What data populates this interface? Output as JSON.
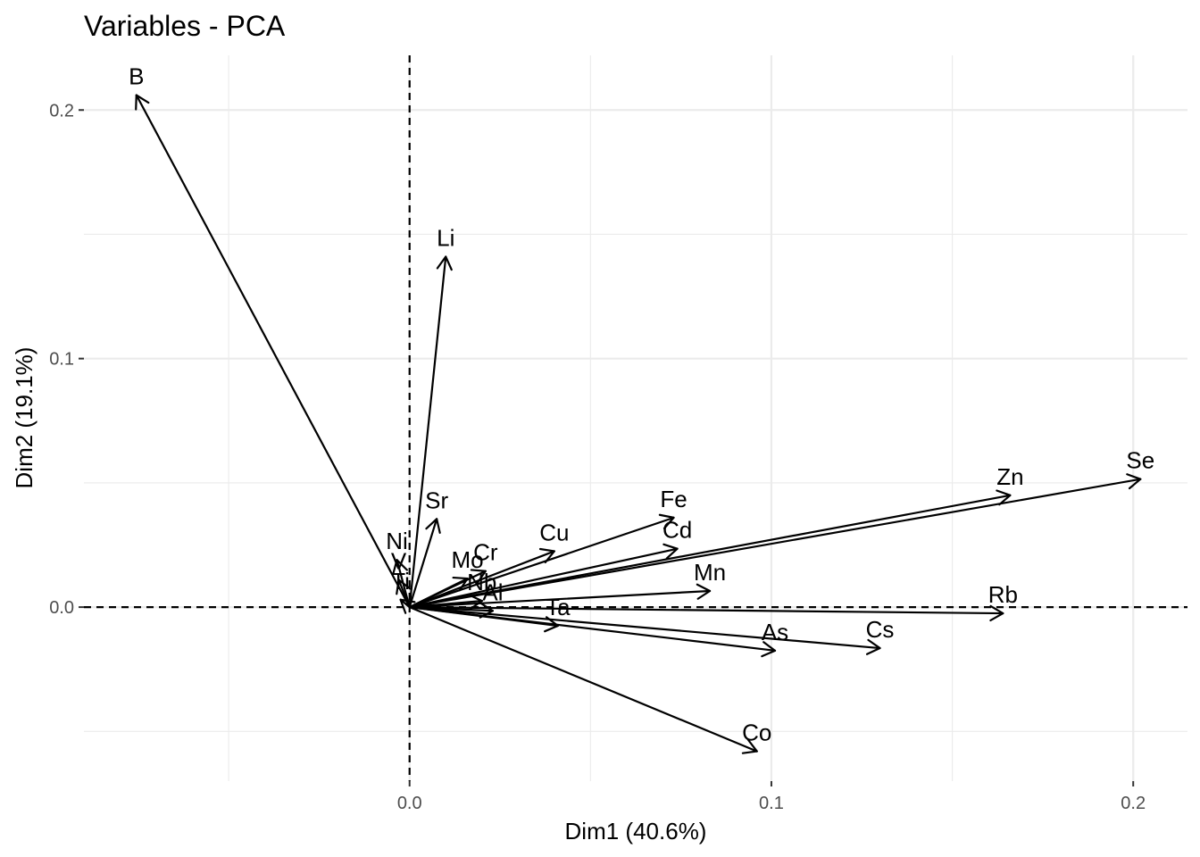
{
  "chart_data": {
    "type": "scatter",
    "title": "Variables - PCA",
    "xlabel": "Dim1 (40.6%)",
    "ylabel": "Dim2 (19.1%)",
    "xlim": [
      -0.09,
      0.215
    ],
    "ylim": [
      -0.07,
      0.222
    ],
    "x_ticks": [
      0.0,
      0.1,
      0.2
    ],
    "x_tick_labels": [
      "0.0",
      "0.1",
      "0.2"
    ],
    "y_ticks": [
      0.0,
      0.1,
      0.2
    ],
    "y_tick_labels": [
      "0.0",
      "0.1",
      "0.2"
    ],
    "grid": true,
    "reference_lines": {
      "x": 0,
      "y": 0,
      "style": "dashed"
    },
    "variables": [
      {
        "name": "B",
        "x": -0.0755,
        "y": 0.206
      },
      {
        "name": "Li",
        "x": 0.01,
        "y": 0.141
      },
      {
        "name": "Sr",
        "x": 0.0075,
        "y": 0.0355
      },
      {
        "name": "Ni",
        "x": -0.0035,
        "y": 0.019
      },
      {
        "name": "V",
        "x": -0.003,
        "y": 0.011
      },
      {
        "name": "Ti",
        "x": -0.0025,
        "y": 0.003
      },
      {
        "name": "Cr",
        "x": 0.021,
        "y": 0.0145
      },
      {
        "name": "Mo",
        "x": 0.016,
        "y": 0.0115
      },
      {
        "name": "Cu",
        "x": 0.04,
        "y": 0.0225
      },
      {
        "name": "Fe",
        "x": 0.073,
        "y": 0.036
      },
      {
        "name": "Cd",
        "x": 0.074,
        "y": 0.0235
      },
      {
        "name": "Zn",
        "x": 0.166,
        "y": 0.045
      },
      {
        "name": "Se",
        "x": 0.202,
        "y": 0.0515
      },
      {
        "name": "Mn",
        "x": 0.083,
        "y": 0.0065
      },
      {
        "name": "Nb",
        "x": 0.02,
        "y": 0.0025
      },
      {
        "name": "Al",
        "x": 0.023,
        "y": -0.0015
      },
      {
        "name": "Ta",
        "x": 0.041,
        "y": -0.0075
      },
      {
        "name": "Rb",
        "x": 0.164,
        "y": -0.0025
      },
      {
        "name": "Cs",
        "x": 0.13,
        "y": -0.0165
      },
      {
        "name": "As",
        "x": 0.101,
        "y": -0.0175
      },
      {
        "name": "Co",
        "x": 0.096,
        "y": -0.058
      }
    ]
  }
}
